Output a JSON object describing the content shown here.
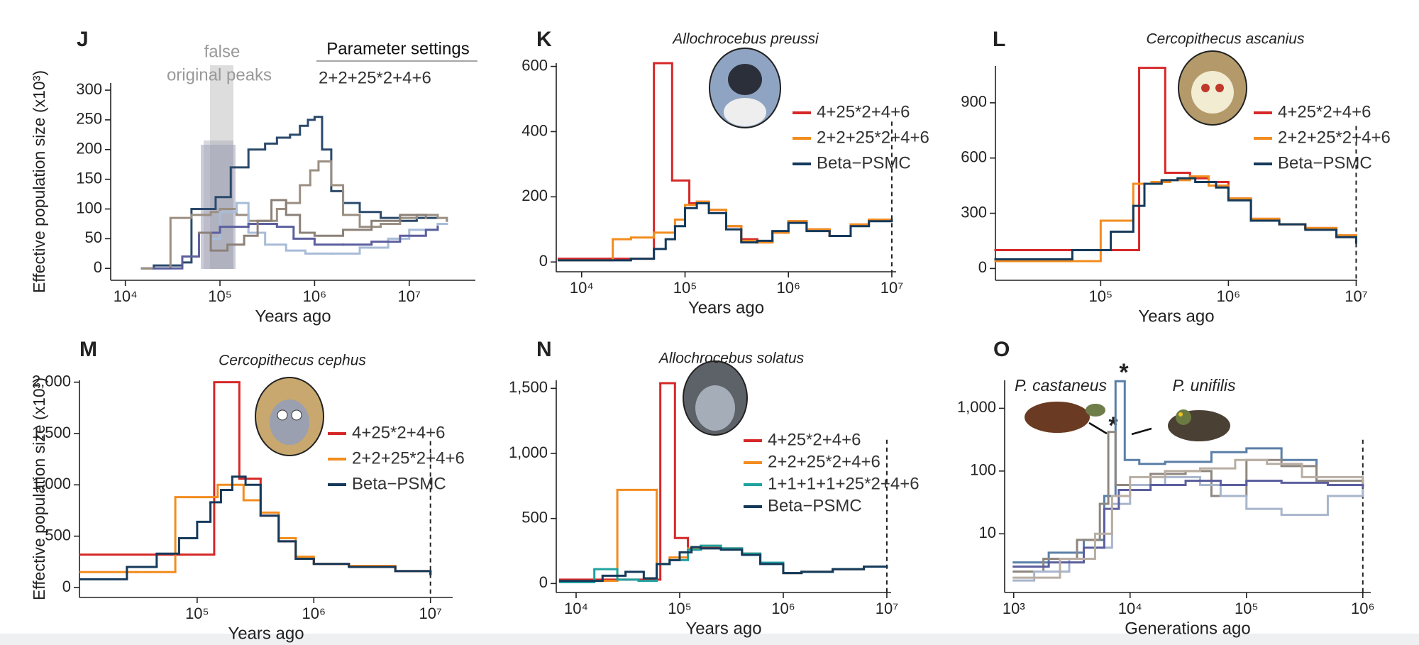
{
  "chart_data": [
    {
      "type": "step",
      "label": "J",
      "xlabel": "Years ago",
      "ylabel": "Effective population size (x10³)",
      "annotation_lines": [
        "false",
        "original peaks"
      ],
      "legend_title": "Parameter settings",
      "legend_text": "2+2+25*2+4+6",
      "log_x": true,
      "xlim": [
        7000,
        50000000
      ],
      "ylim": [
        -20,
        312
      ],
      "xticks": [
        {
          "value": 10000,
          "label": "10⁴"
        },
        {
          "value": 100000,
          "label": "10⁵"
        },
        {
          "value": 1000000,
          "label": "10⁶"
        },
        {
          "value": 10000000,
          "label": "10⁷"
        }
      ],
      "yticks": [
        0,
        50,
        100,
        150,
        200,
        250,
        300
      ],
      "series": [
        {
          "color": "#2b4a6b",
          "x": [
            15000,
            20000,
            40000,
            50000,
            90000,
            130000,
            200000,
            300000,
            400000,
            550000,
            700000,
            850000,
            1000000,
            1200000,
            1500000,
            2000000,
            3000000,
            5000000,
            8000000,
            12000000,
            20000000
          ],
          "values": [
            0,
            5,
            10,
            100,
            120,
            170,
            200,
            210,
            220,
            225,
            240,
            250,
            255,
            200,
            130,
            110,
            95,
            85,
            80,
            85,
            85
          ]
        },
        {
          "color": "#9b8f82",
          "x": [
            15000,
            30000,
            50000,
            80000,
            100000,
            150000,
            200000,
            300000,
            400000,
            500000,
            700000,
            900000,
            1100000,
            1500000,
            2000000,
            3000000,
            5000000,
            8000000,
            12000000,
            20000000,
            25000000
          ],
          "values": [
            0,
            85,
            90,
            95,
            100,
            90,
            80,
            80,
            100,
            110,
            140,
            165,
            180,
            140,
            90,
            70,
            75,
            85,
            90,
            85,
            80
          ]
        },
        {
          "color": "#a8bcd8",
          "x": [
            80000,
            100000,
            150000,
            200000,
            300000,
            500000,
            800000,
            1500000,
            3000000,
            6000000,
            10000000,
            20000000,
            25000000
          ],
          "values": [
            50,
            95,
            110,
            60,
            40,
            30,
            25,
            25,
            35,
            50,
            65,
            75,
            75
          ]
        },
        {
          "color": "#5c5f9e",
          "x": [
            20000,
            40000,
            60000,
            100000,
            200000,
            400000,
            600000,
            1000000,
            2000000,
            4000000,
            8000000,
            15000000,
            20000000
          ],
          "values": [
            0,
            20,
            60,
            70,
            75,
            70,
            50,
            40,
            40,
            45,
            55,
            65,
            70
          ]
        },
        {
          "color": "#8c8178",
          "x": [
            60000,
            80000,
            120000,
            180000,
            250000,
            350000,
            500000,
            700000,
            1000000,
            2000000,
            4000000,
            8000000,
            15000000
          ],
          "values": [
            60,
            30,
            40,
            55,
            80,
            115,
            90,
            60,
            55,
            65,
            80,
            90,
            85
          ]
        }
      ]
    },
    {
      "type": "step",
      "label": "K",
      "title": "Allochrocebus preussi",
      "xlabel": "Years ago",
      "log_x": true,
      "xlim": [
        5680,
        11000000
      ],
      "ylim": [
        -30,
        610
      ],
      "vline": 10000000,
      "xticks": [
        {
          "value": 10000,
          "label": "10⁴"
        },
        {
          "value": 100000,
          "label": "10⁵"
        },
        {
          "value": 1000000,
          "label": "10⁶"
        },
        {
          "value": 10000000,
          "label": "10⁷"
        }
      ],
      "yticks": [
        0,
        200,
        400,
        600
      ],
      "series": [
        {
          "name": "4+25*2+4+6",
          "color": "#d62828",
          "x": [
            6000,
            50000,
            75000,
            110000,
            130000,
            170000,
            250000,
            350000,
            500000,
            700000,
            1000000,
            1500000,
            2500000,
            4000000,
            6000000,
            10000000
          ],
          "values": [
            10,
            610,
            250,
            180,
            185,
            160,
            110,
            70,
            60,
            90,
            125,
            100,
            80,
            115,
            130,
            130
          ]
        },
        {
          "name": "2+2+25*2+4+6",
          "color": "#f28c1e",
          "x": [
            6000,
            20000,
            30000,
            50000,
            80000,
            100000,
            130000,
            170000,
            250000,
            350000,
            500000,
            700000,
            1000000,
            1500000,
            2500000,
            4000000,
            6000000,
            10000000
          ],
          "values": [
            5,
            70,
            75,
            90,
            130,
            175,
            185,
            160,
            110,
            65,
            60,
            90,
            125,
            100,
            80,
            115,
            130,
            130
          ]
        },
        {
          "name": "Beta−PSMC",
          "color": "#153a5b",
          "x": [
            6000,
            30000,
            50000,
            65000,
            80000,
            100000,
            130000,
            170000,
            250000,
            350000,
            500000,
            700000,
            1000000,
            1500000,
            2500000,
            4000000,
            6000000,
            10000000
          ],
          "values": [
            5,
            10,
            40,
            70,
            110,
            165,
            180,
            150,
            100,
            60,
            65,
            95,
            120,
            95,
            80,
            110,
            125,
            130
          ]
        }
      ]
    },
    {
      "type": "step",
      "label": "L",
      "title": "Cercopithecus ascanius",
      "xlabel": "Years ago",
      "log_x": true,
      "xlim": [
        15000,
        10200000
      ],
      "ylim": [
        -64,
        1100
      ],
      "vline": 10000000,
      "xticks": [
        {
          "value": 100000,
          "label": "10⁵"
        },
        {
          "value": 1000000,
          "label": "10⁶"
        },
        {
          "value": 10000000,
          "label": "10⁷"
        }
      ],
      "yticks": [
        0,
        300,
        600,
        900
      ],
      "series": [
        {
          "name": "4+25*2+4+6",
          "color": "#d62828",
          "x": [
            15000,
            200000,
            320000,
            500000,
            700000,
            1000000,
            1500000,
            2500000,
            4000000,
            7000000,
            10000000
          ],
          "values": [
            100,
            1090,
            520,
            490,
            470,
            380,
            270,
            240,
            220,
            180,
            140
          ]
        },
        {
          "name": "2+2+25*2+4+6",
          "color": "#f28c1e",
          "x": [
            15000,
            100000,
            180000,
            250000,
            350000,
            500000,
            700000,
            1000000,
            1500000,
            2500000,
            4000000,
            7000000,
            10000000
          ],
          "values": [
            40,
            260,
            460,
            470,
            480,
            500,
            450,
            380,
            270,
            240,
            220,
            180,
            140
          ]
        },
        {
          "name": "Beta−PSMC",
          "color": "#153a5b",
          "x": [
            15000,
            60000,
            120000,
            180000,
            220000,
            300000,
            400000,
            550000,
            800000,
            1000000,
            1500000,
            2500000,
            4000000,
            7000000,
            10000000
          ],
          "values": [
            50,
            100,
            200,
            340,
            460,
            480,
            490,
            470,
            440,
            370,
            260,
            240,
            210,
            170,
            140
          ]
        }
      ]
    },
    {
      "type": "step",
      "label": "M",
      "title": "Cercopithecus cephus",
      "xlabel": "Years ago",
      "ylabel": "Effective population size (x10³)",
      "log_x": true,
      "xlim": [
        9800,
        15500000
      ],
      "ylim": [
        -97,
        2018
      ],
      "vline": 10000000,
      "xticks": [
        {
          "value": 100000,
          "label": "10⁵"
        },
        {
          "value": 1000000,
          "label": "10⁶"
        },
        {
          "value": 10000000,
          "label": "10⁷"
        }
      ],
      "yticks": [
        0,
        500,
        {
          "value": 1000,
          "label": "1,000"
        },
        {
          "value": 1500,
          "label": "1,500"
        },
        {
          "value": 2000,
          "label": "2,000"
        }
      ],
      "series": [
        {
          "name": "4+25*2+4+6",
          "color": "#d62828",
          "x": [
            10000,
            60000,
            140000,
            230000,
            350000,
            500000,
            700000,
            1000000,
            2000000,
            5000000,
            10000000
          ],
          "values": [
            320,
            320,
            2000,
            1060,
            700,
            450,
            280,
            230,
            210,
            160,
            130
          ]
        },
        {
          "name": "2+2+25*2+4+6",
          "color": "#f28c1e",
          "x": [
            10000,
            30000,
            65000,
            150000,
            250000,
            350000,
            500000,
            700000,
            1000000,
            2000000,
            5000000,
            10000000
          ],
          "values": [
            150,
            150,
            880,
            1000,
            850,
            730,
            480,
            300,
            230,
            210,
            160,
            130
          ]
        },
        {
          "name": "Beta−PSMC",
          "color": "#153a5b",
          "x": [
            10000,
            25000,
            45000,
            70000,
            100000,
            130000,
            160000,
            200000,
            260000,
            350000,
            500000,
            700000,
            1000000,
            2000000,
            5000000,
            10000000
          ],
          "values": [
            80,
            200,
            330,
            480,
            640,
            830,
            950,
            1080,
            1000,
            700,
            450,
            280,
            230,
            200,
            160,
            130
          ]
        }
      ]
    },
    {
      "type": "step",
      "label": "N",
      "title": "Allochrocebus solatus",
      "xlabel": "Years ago",
      "log_x": true,
      "xlim": [
        6430,
        11000000
      ],
      "ylim": [
        -69,
        1562
      ],
      "vline": 10000000,
      "xticks": [
        {
          "value": 10000,
          "label": "10⁴"
        },
        {
          "value": 100000,
          "label": "10⁵"
        },
        {
          "value": 1000000,
          "label": "10⁶"
        },
        {
          "value": 10000000,
          "label": "10⁷"
        }
      ],
      "yticks": [
        0,
        500,
        {
          "value": 1000,
          "label": "1,000"
        },
        {
          "value": 1500,
          "label": "1,500"
        }
      ],
      "series": [
        {
          "name": "4+25*2+4+6",
          "color": "#d62828",
          "x": [
            7000,
            65000,
            90000,
            120000,
            160000,
            250000,
            400000,
            600000,
            1000000,
            1500000,
            3000000,
            6000000,
            10000000
          ],
          "values": [
            30,
            1540,
            350,
            260,
            280,
            270,
            230,
            160,
            80,
            90,
            110,
            130,
            130
          ]
        },
        {
          "name": "2+2+25*2+4+6",
          "color": "#f28c1e",
          "x": [
            7000,
            25000,
            60000,
            80000,
            120000,
            160000,
            250000,
            400000,
            600000,
            1000000,
            1500000,
            3000000,
            6000000,
            10000000
          ],
          "values": [
            20,
            720,
            150,
            200,
            270,
            290,
            270,
            230,
            160,
            80,
            90,
            110,
            130,
            130
          ]
        },
        {
          "name": "1+1+1+1+25*2+4+6",
          "color": "#1fa3a0",
          "x": [
            7000,
            15000,
            25000,
            40000,
            60000,
            80000,
            120000,
            160000,
            250000,
            400000,
            600000,
            1000000,
            1500000,
            3000000,
            6000000,
            10000000
          ],
          "values": [
            10,
            110,
            30,
            20,
            150,
            180,
            260,
            290,
            270,
            230,
            160,
            80,
            90,
            110,
            130,
            130
          ]
        },
        {
          "name": "Beta−PSMC",
          "color": "#153a5b",
          "x": [
            7000,
            18000,
            30000,
            45000,
            60000,
            80000,
            100000,
            130000,
            160000,
            250000,
            400000,
            600000,
            1000000,
            1500000,
            3000000,
            6000000,
            10000000
          ],
          "values": [
            20,
            60,
            90,
            40,
            150,
            180,
            240,
            280,
            270,
            260,
            220,
            150,
            80,
            90,
            110,
            130,
            130
          ]
        }
      ]
    },
    {
      "type": "step",
      "label": "O",
      "xlabel": "Generations ago",
      "annotations": [
        "P. castaneus",
        "P. unifilis",
        "*",
        "*"
      ],
      "log_x": true,
      "log_y": true,
      "xlim": [
        836,
        1170000
      ],
      "ylim": [
        1.16,
        2790
      ],
      "vline": 1000000,
      "xticks": [
        {
          "value": 1000,
          "label": "10³"
        },
        {
          "value": 10000,
          "label": "10⁴"
        },
        {
          "value": 100000,
          "label": "10⁵"
        },
        {
          "value": 1000000,
          "label": "10⁶"
        }
      ],
      "yticks": [
        10,
        100,
        {
          "value": 1000,
          "label": "1,000"
        }
      ],
      "series": [
        {
          "color": "#5a7fa8",
          "x": [
            1000,
            2000,
            4000,
            6000,
            7500,
            9000,
            12000,
            20000,
            50000,
            100000,
            200000,
            400000,
            1000000
          ],
          "values": [
            3.5,
            5,
            8,
            40,
            2700,
            150,
            130,
            140,
            200,
            230,
            150,
            70,
            60
          ]
        },
        {
          "color": "#8f877f",
          "x": [
            1000,
            1800,
            3500,
            5500,
            6500,
            7500,
            15000,
            30000,
            50000,
            100000,
            200000,
            400000,
            1000000
          ],
          "values": [
            2.5,
            4,
            8,
            30,
            420,
            60,
            90,
            100,
            40,
            150,
            120,
            70,
            60
          ]
        },
        {
          "color": "#a8b5cc",
          "x": [
            1000,
            1500,
            3000,
            5000,
            7000,
            10000,
            20000,
            40000,
            60000,
            100000,
            200000,
            500000,
            1000000
          ],
          "values": [
            1.8,
            2.5,
            4,
            6,
            30,
            60,
            80,
            60,
            40,
            25,
            20,
            40,
            50
          ]
        },
        {
          "color": "#5c5f9e",
          "x": [
            1000,
            2000,
            4000,
            6000,
            8000,
            15000,
            30000,
            60000,
            100000,
            200000,
            500000,
            1000000
          ],
          "values": [
            3,
            3.5,
            6,
            25,
            50,
            60,
            70,
            60,
            70,
            65,
            60,
            55
          ]
        },
        {
          "color": "#b8aea3",
          "x": [
            1000,
            2500,
            5000,
            7000,
            10000,
            20000,
            40000,
            80000,
            150000,
            300000,
            1000000
          ],
          "values": [
            2,
            4,
            10,
            40,
            80,
            100,
            110,
            150,
            130,
            80,
            65
          ]
        }
      ]
    }
  ]
}
